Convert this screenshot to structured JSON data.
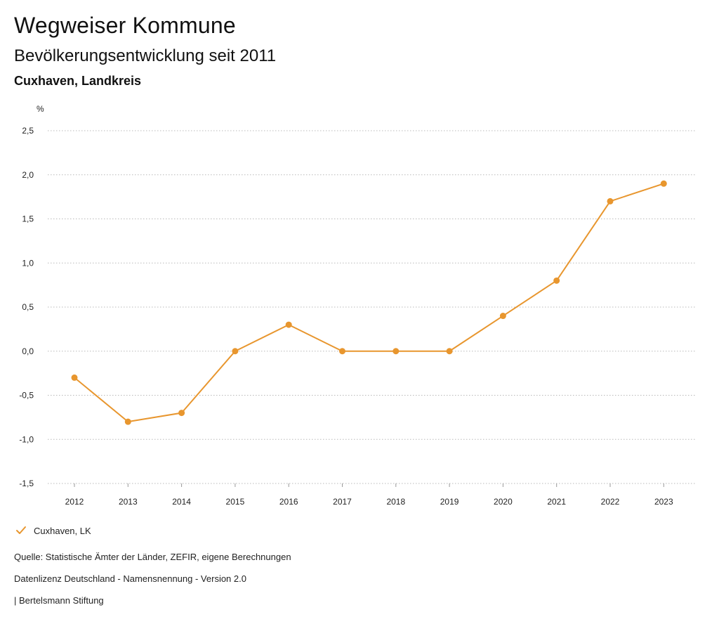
{
  "header": {
    "title": "Wegweiser Kommune",
    "subtitle": "Bevölkerungsentwicklung seit 2011",
    "region": "Cuxhaven, Landkreis"
  },
  "chart_data": {
    "type": "line",
    "title": "Bevölkerungsentwicklung seit 2011",
    "xlabel": "",
    "ylabel": "%",
    "categories": [
      "2012",
      "2013",
      "2014",
      "2015",
      "2016",
      "2017",
      "2018",
      "2019",
      "2020",
      "2021",
      "2022",
      "2023"
    ],
    "series": [
      {
        "name": "Cuxhaven, LK",
        "values": [
          -0.3,
          -0.8,
          -0.7,
          0.0,
          0.3,
          0.0,
          0.0,
          0.0,
          0.4,
          0.8,
          1.7,
          1.9
        ],
        "color": "#E8962E"
      }
    ],
    "ylim": [
      -1.5,
      2.5
    ],
    "yticks": [
      -1.5,
      -1.0,
      -0.5,
      0.0,
      0.5,
      1.0,
      1.5,
      2.0,
      2.5
    ],
    "ytick_labels": [
      "-1,5",
      "-1,0",
      "-0,5",
      "0,0",
      "0,5",
      "1,0",
      "1,5",
      "2,0",
      "2,5"
    ],
    "grid": true,
    "legend_position": "bottom-left"
  },
  "legend": {
    "icon": "checkmark-icon",
    "label": "Cuxhaven, LK"
  },
  "footer": {
    "source": "Quelle: Statistische Ämter der Länder, ZEFIR, eigene Berechnungen",
    "license": "Datenlizenz Deutschland - Namensnennung - Version 2.0",
    "publisher": "| Bertelsmann Stiftung"
  }
}
